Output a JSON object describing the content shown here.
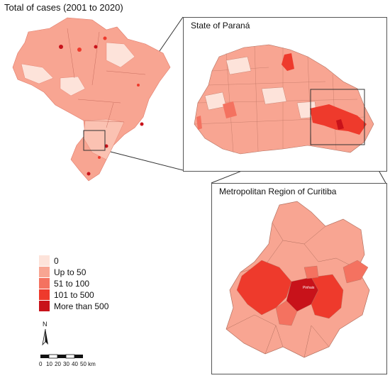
{
  "title": "Total of cases (2001 to 2020)",
  "panels": {
    "parana": {
      "title": "State of Paraná"
    },
    "curitiba": {
      "title": "Metropolitan Region of Curitiba",
      "city_label": "Pinhais"
    }
  },
  "legend": {
    "items": [
      {
        "label": "0",
        "color": "#fde3da"
      },
      {
        "label": "Up to 50",
        "color": "#f8a592"
      },
      {
        "label": "51 to 100",
        "color": "#f47260"
      },
      {
        "label": "101 to 500",
        "color": "#ee3a2c"
      },
      {
        "label": "More than 500",
        "color": "#c8121a"
      }
    ]
  },
  "north_arrow": {
    "label": "N"
  },
  "scale_bar": {
    "labels": [
      "0",
      "10",
      "20",
      "30",
      "40",
      "50 km"
    ]
  }
}
